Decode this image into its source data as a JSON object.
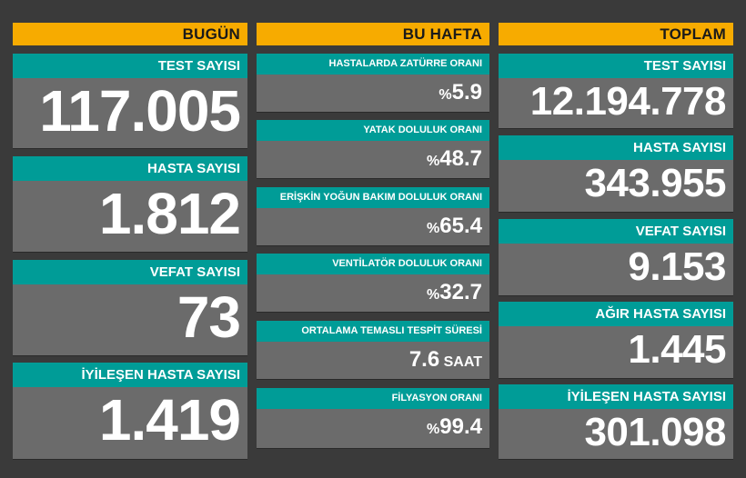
{
  "today": {
    "header": "BUGÜN",
    "cards": [
      {
        "label": "TEST SAYISI",
        "value": "117.005"
      },
      {
        "label": "HASTA SAYISI",
        "value": "1.812"
      },
      {
        "label": "VEFAT SAYISI",
        "value": "73"
      },
      {
        "label": "İYİLEŞEN HASTA SAYISI",
        "value": "1.419"
      }
    ]
  },
  "week": {
    "header": "BU HAFTA",
    "cards": [
      {
        "label": "HASTALARDA ZATÜRRE ORANI",
        "prefix": "%",
        "value": "5.9",
        "suffix": ""
      },
      {
        "label": "YATAK DOLULUK ORANI",
        "prefix": "%",
        "value": "48.7",
        "suffix": ""
      },
      {
        "label": "ERİŞKİN YOĞUN BAKIM DOLULUK ORANI",
        "prefix": "%",
        "value": "65.4",
        "suffix": ""
      },
      {
        "label": "VENTİLATÖR DOLULUK ORANI",
        "prefix": "%",
        "value": "32.7",
        "suffix": ""
      },
      {
        "label": "ORTALAMA TEMASLI TESPİT SÜRESİ",
        "prefix": "",
        "value": "7.6",
        "suffix": " SAAT"
      },
      {
        "label": "FİLYASYON ORANI",
        "prefix": "%",
        "value": "99.4",
        "suffix": ""
      }
    ]
  },
  "total": {
    "header": "TOPLAM",
    "cards": [
      {
        "label": "TEST SAYISI",
        "value": "12.194.778"
      },
      {
        "label": "HASTA SAYISI",
        "value": "343.955"
      },
      {
        "label": "VEFAT SAYISI",
        "value": "9.153"
      },
      {
        "label": "AĞIR HASTA SAYISI",
        "value": "1.445"
      },
      {
        "label": "İYİLEŞEN HASTA SAYISI",
        "value": "301.098"
      }
    ]
  },
  "colors": {
    "header_bg": "#f7ab00",
    "label_bg": "#009c97",
    "value_bg": "#6b6b6b",
    "page_bg": "#3a3a3a"
  }
}
